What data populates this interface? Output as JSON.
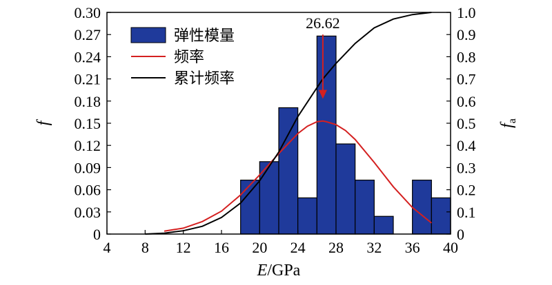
{
  "chart_data": {
    "type": "bar",
    "xlabel": {
      "var": "E",
      "unit": "/GPa"
    },
    "ylabel_left": "f",
    "ylabel_right": {
      "base": "f",
      "sub": "a"
    },
    "xlim": [
      4,
      40
    ],
    "ylim_left": [
      0,
      0.3
    ],
    "ylim_right": [
      0,
      1.0
    ],
    "x_ticks": [
      4,
      8,
      12,
      16,
      20,
      24,
      28,
      32,
      36,
      40
    ],
    "y_left_ticks": [
      "0",
      "0.03",
      "0.06",
      "0.09",
      "0.12",
      "0.15",
      "0.18",
      "0.21",
      "0.24",
      "0.27",
      "0.30"
    ],
    "y_right_ticks": [
      "0",
      "0.1",
      "0.2",
      "0.3",
      "0.4",
      "0.5",
      "0.6",
      "0.7",
      "0.8",
      "0.9",
      "1.0"
    ],
    "grid": false,
    "legend_position": "top-left",
    "bar_color": "#1f3a9b",
    "colors": {
      "frequency_curve": "#d42020",
      "cumulative_curve": "#000000",
      "annotation_arrow": "#d42020"
    },
    "series": [
      {
        "name": "弹性模量",
        "kind": "histogram",
        "bins": [
          {
            "x0": 18,
            "x1": 20,
            "value": 0.073
          },
          {
            "x0": 20,
            "x1": 22,
            "value": 0.098
          },
          {
            "x0": 22,
            "x1": 24,
            "value": 0.171
          },
          {
            "x0": 24,
            "x1": 26,
            "value": 0.049
          },
          {
            "x0": 26,
            "x1": 28,
            "value": 0.268
          },
          {
            "x0": 28,
            "x1": 30,
            "value": 0.122
          },
          {
            "x0": 30,
            "x1": 32,
            "value": 0.073
          },
          {
            "x0": 32,
            "x1": 34,
            "value": 0.024
          },
          {
            "x0": 36,
            "x1": 38,
            "value": 0.073
          },
          {
            "x0": 38,
            "x1": 40,
            "value": 0.049
          }
        ]
      },
      {
        "name": "频率",
        "kind": "line",
        "axis": "left",
        "x": [
          10,
          12,
          14,
          16,
          18,
          20,
          22,
          24,
          25,
          26,
          26.62,
          27,
          28,
          29,
          30,
          32,
          34,
          36,
          38
        ],
        "y": [
          0.004,
          0.008,
          0.017,
          0.031,
          0.053,
          0.08,
          0.109,
          0.136,
          0.146,
          0.152,
          0.153,
          0.152,
          0.148,
          0.14,
          0.128,
          0.097,
          0.064,
          0.036,
          0.015
        ]
      },
      {
        "name": "累计频率",
        "kind": "line",
        "axis": "right",
        "x": [
          8,
          10,
          12,
          14,
          16,
          18,
          20,
          22,
          24,
          26,
          26.62,
          28,
          30,
          32,
          34,
          36,
          38
        ],
        "y": [
          0.0,
          0.004,
          0.015,
          0.035,
          0.075,
          0.14,
          0.24,
          0.37,
          0.53,
          0.66,
          0.7,
          0.77,
          0.86,
          0.93,
          0.97,
          0.99,
          1.0
        ]
      }
    ],
    "annotation": {
      "text": "26.62",
      "x": 26.62,
      "arrow_from_y": 0.27,
      "arrow_to_y": 0.183
    }
  }
}
